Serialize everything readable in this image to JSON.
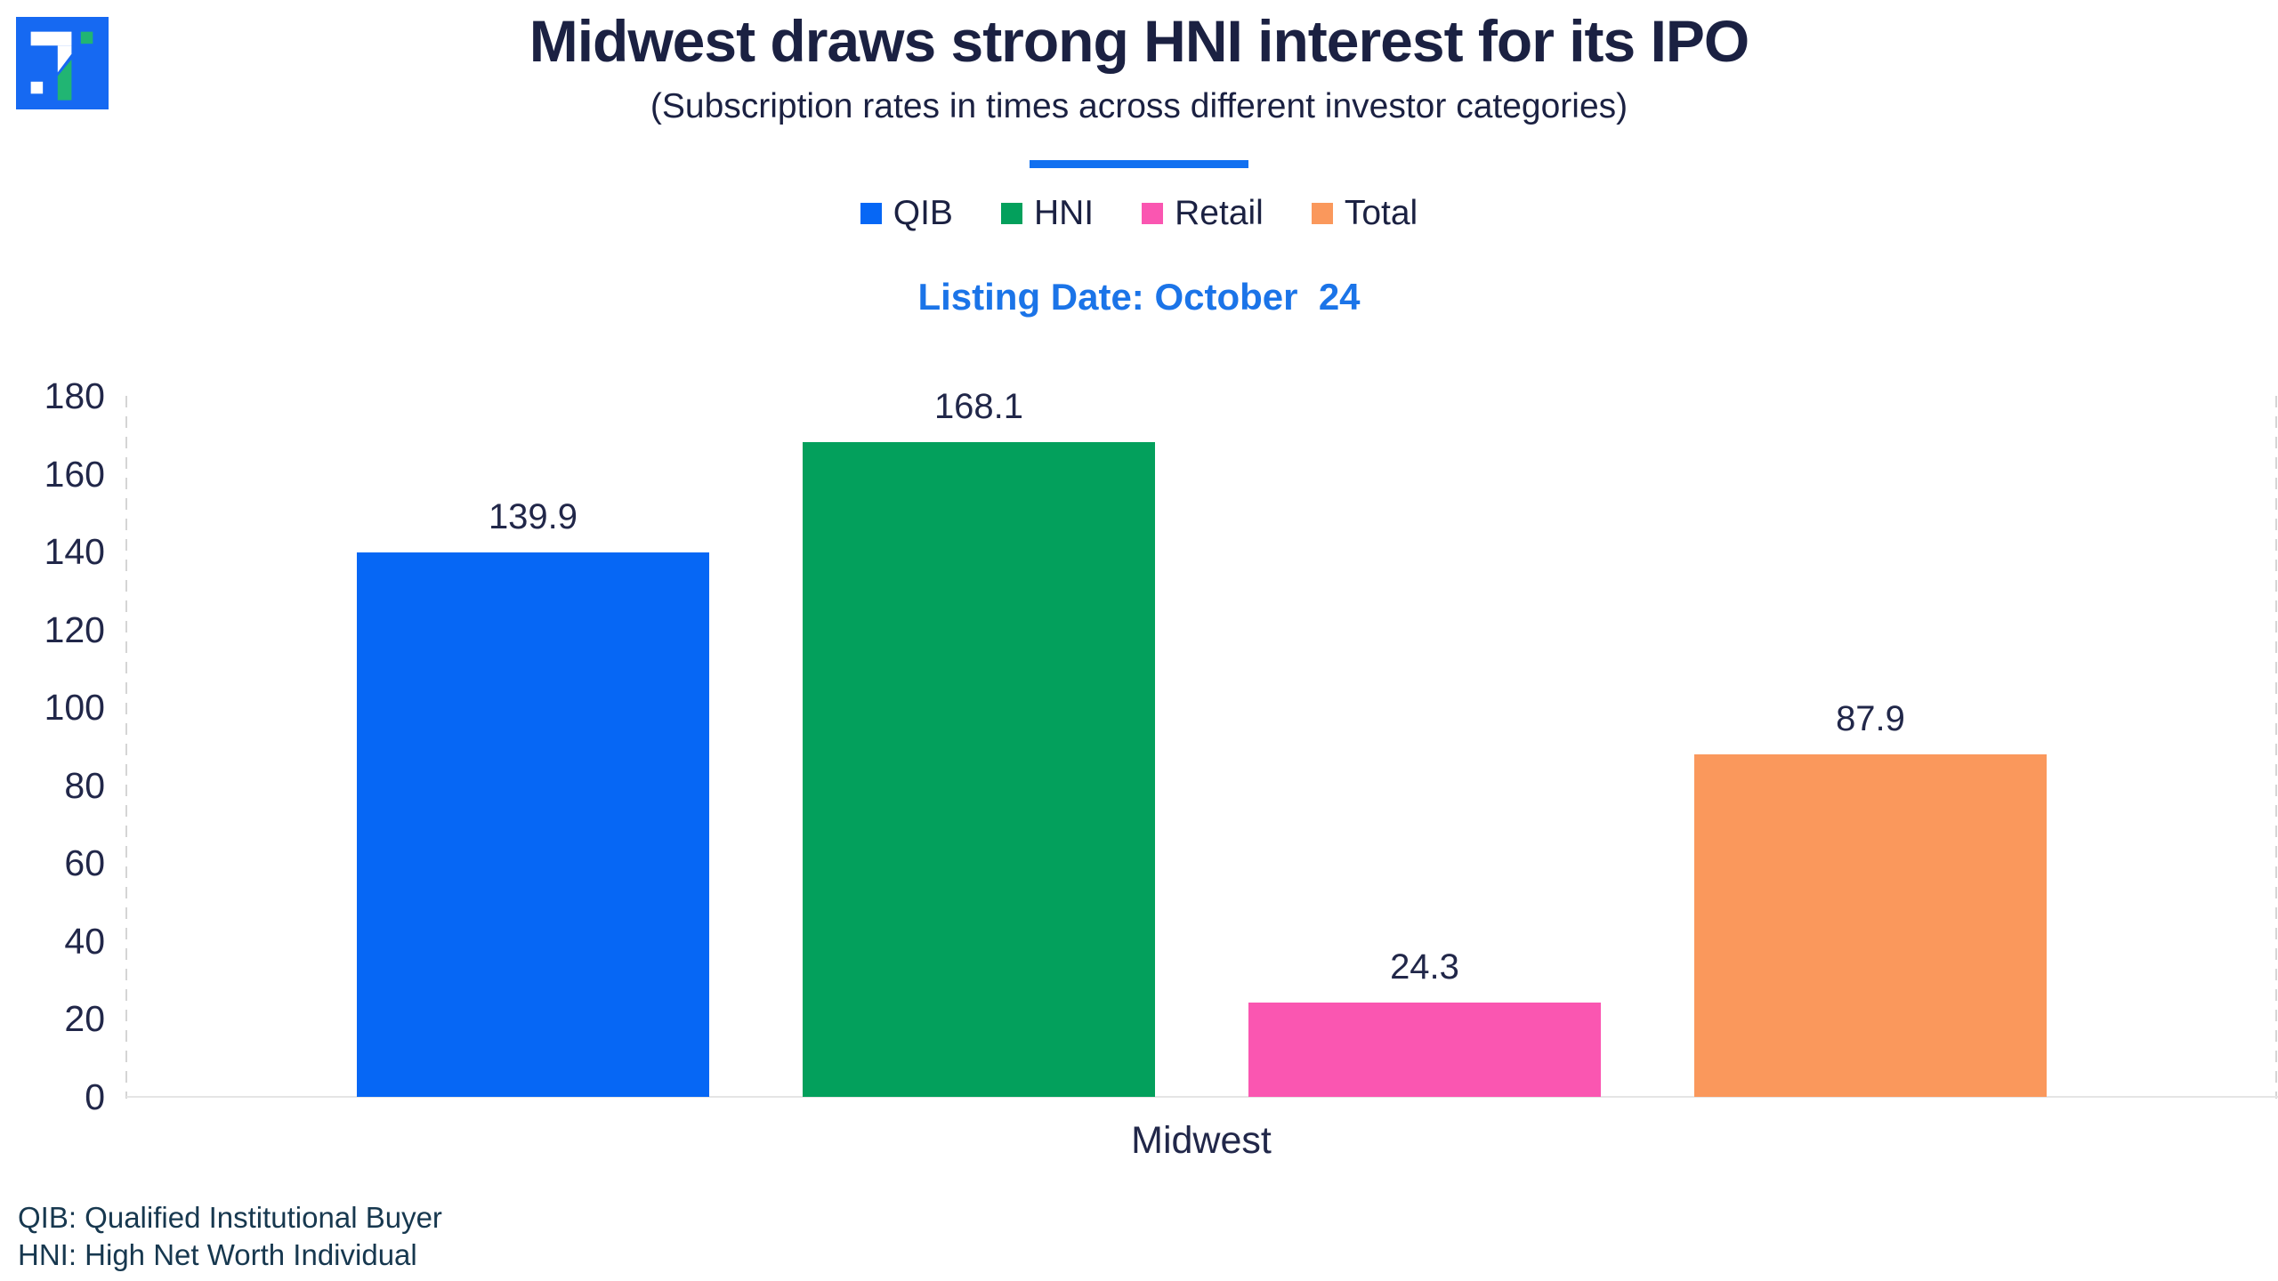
{
  "header": {
    "title": "Midwest draws strong HNI interest for its IPO",
    "subtitle": "(Subscription rates in times across different investor categories)",
    "listing_date": "Listing Date: October  24"
  },
  "chart_data": {
    "type": "bar",
    "categories": [
      "Midwest"
    ],
    "series": [
      {
        "name": "QIB",
        "values": [
          139.9
        ],
        "color": "#0667F5"
      },
      {
        "name": "HNI",
        "values": [
          168.1
        ],
        "color": "#03A05C"
      },
      {
        "name": "Retail",
        "values": [
          24.3
        ],
        "color": "#FA56B1"
      },
      {
        "name": "Total",
        "values": [
          87.9
        ],
        "color": "#FA985C"
      }
    ],
    "data_labels": [
      "139.9",
      "168.1",
      "24.3",
      "87.9"
    ],
    "title": "Midwest draws strong HNI interest for its IPO",
    "subtitle": "(Subscription rates in times across different investor categories)",
    "xlabel": "",
    "ylabel": "",
    "ylim": [
      0,
      180
    ],
    "yticks": [
      0,
      20,
      40,
      60,
      80,
      100,
      120,
      140,
      160,
      180
    ],
    "grid": "none",
    "legend_position": "top"
  },
  "footnotes": [
    "QIB: Qualified Institutional Buyer",
    "HNI: High Net Worth Individual"
  ],
  "colors": {
    "title_text": "#1B2142",
    "axis_text": "#212749",
    "listing_date_text": "#1B74E8",
    "title_underline": "#1170F0",
    "footnote_text": "#17384F",
    "axis_dash": "#D5D5D5",
    "baseline": "#E5E5E5",
    "logo_background": "#1669F2",
    "logo_green": "#21B573"
  }
}
